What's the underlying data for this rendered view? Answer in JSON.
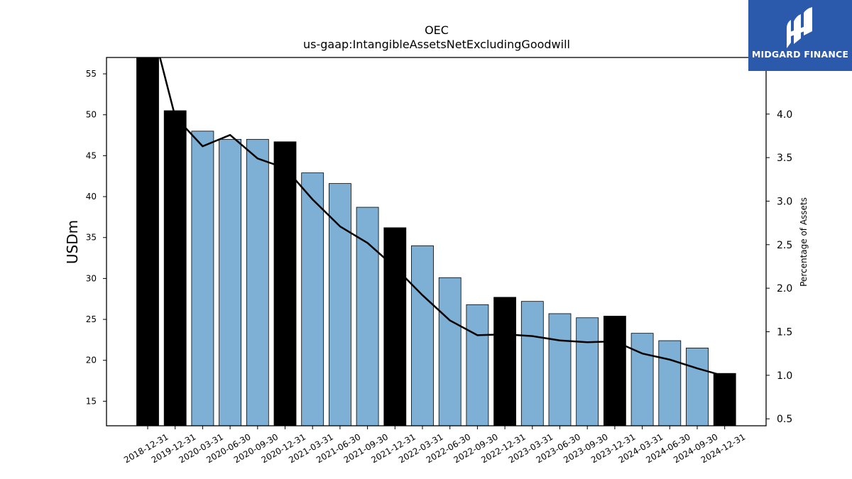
{
  "chart_data": {
    "type": "bar",
    "title": "OEC",
    "subtitle": "us-gaap:IntangibleAssetsNetExcludingGoodwill",
    "ylabel": "USDm",
    "ylabel_right": "Percentage of Assets",
    "ylim": [
      12,
      57
    ],
    "ylim_right": [
      0.42,
      4.65
    ],
    "yticks": [
      15,
      20,
      25,
      30,
      35,
      40,
      45,
      50,
      55
    ],
    "yticks_right": [
      0.5,
      1.0,
      1.5,
      2.0,
      2.5,
      3.0,
      3.5,
      4.0
    ],
    "yticks_right_labels": [
      "0.5",
      "1.0",
      "1.5",
      "2.0",
      "2.5",
      "3.0",
      "3.5",
      "4.0"
    ],
    "categories": [
      "2018-12-31",
      "2019-12-31",
      "2020-03-31",
      "2020-06-30",
      "2020-09-30",
      "2020-12-31",
      "2021-03-31",
      "2021-06-30",
      "2021-09-30",
      "2021-12-31",
      "2022-03-31",
      "2022-06-30",
      "2022-09-30",
      "2022-12-31",
      "2023-03-31",
      "2023-06-30",
      "2023-09-30",
      "2023-12-31",
      "2024-03-31",
      "2024-06-30",
      "2024-09-30",
      "2024-12-31"
    ],
    "series": [
      {
        "type": "bar",
        "values": [
          57.5,
          50.5,
          48.0,
          47.0,
          47.0,
          46.7,
          42.9,
          41.6,
          38.7,
          36.2,
          34.0,
          30.1,
          26.8,
          27.7,
          27.2,
          25.7,
          25.2,
          25.4,
          23.3,
          22.4,
          21.5,
          18.4
        ],
        "annual": [
          true,
          true,
          false,
          false,
          false,
          true,
          false,
          false,
          false,
          true,
          false,
          false,
          false,
          true,
          false,
          false,
          false,
          true,
          false,
          false,
          false,
          true
        ]
      },
      {
        "type": "line",
        "axis": "right",
        "values": [
          5.2,
          3.97,
          3.63,
          3.76,
          3.49,
          3.38,
          3.02,
          2.71,
          2.52,
          2.24,
          1.92,
          1.63,
          1.46,
          1.47,
          1.45,
          1.4,
          1.38,
          1.39,
          1.25,
          1.18,
          1.08,
          0.99
        ]
      }
    ],
    "colors": {
      "annual_bar": "#000000",
      "quarterly_bar": "#7eb0d5",
      "bar_edge": "#000000",
      "line": "#000000"
    },
    "grid": false
  },
  "logo": {
    "text": "MIDGARD FINANCE",
    "background": "#2b5aad"
  }
}
